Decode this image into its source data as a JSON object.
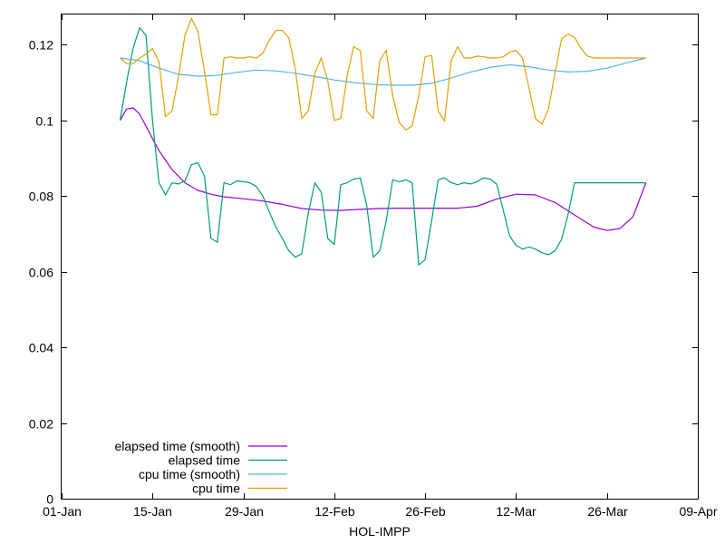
{
  "chart_data": {
    "type": "line",
    "title": "",
    "xlabel": "HOL-IMPP",
    "ylabel": "",
    "x_tick_labels": [
      "01-Jan",
      "15-Jan",
      "29-Jan",
      "12-Feb",
      "26-Feb",
      "12-Mar",
      "26-Mar",
      "09-Apr"
    ],
    "y_tick_labels": [
      "0",
      "0.02",
      "0.04",
      "0.06",
      "0.08",
      "0.1",
      "0.12"
    ],
    "y_ticks": [
      0,
      0.02,
      0.04,
      0.06,
      0.08,
      0.1,
      0.12
    ],
    "x_range_days": [
      0,
      98
    ],
    "ylim": [
      0,
      0.128
    ],
    "grid": false,
    "legend_position": "bottom-left",
    "series": [
      {
        "name": "elapsed time (smooth)",
        "color": "#9400d3",
        "x": [
          9,
          10,
          11,
          12,
          13,
          14,
          15,
          17,
          19,
          21,
          23,
          25,
          28,
          31,
          34,
          37,
          40,
          43,
          46,
          49,
          52,
          55,
          58,
          61,
          64,
          67,
          70,
          73,
          76,
          79,
          82,
          84,
          86,
          88,
          90
        ],
        "y": [
          0.1,
          0.103,
          0.1033,
          0.1017,
          0.0985,
          0.0952,
          0.092,
          0.087,
          0.0835,
          0.0815,
          0.0805,
          0.0798,
          0.0793,
          0.0787,
          0.0778,
          0.0767,
          0.0763,
          0.0762,
          0.0765,
          0.0767,
          0.0768,
          0.0768,
          0.0768,
          0.0768,
          0.0773,
          0.0792,
          0.0805,
          0.0803,
          0.0783,
          0.075,
          0.0718,
          0.0709,
          0.0714,
          0.0745,
          0.0835
        ]
      },
      {
        "name": "elapsed time",
        "color": "#009e73",
        "x": [
          9,
          10,
          11,
          12,
          13,
          14,
          15,
          16,
          17,
          18,
          19,
          20,
          21,
          22,
          23,
          24,
          25,
          26,
          27,
          28,
          29,
          30,
          31,
          32,
          33,
          34,
          35,
          36,
          37,
          38,
          39,
          40,
          41,
          42,
          43,
          44,
          45,
          46,
          47,
          48,
          49,
          50,
          51,
          52,
          53,
          54,
          55,
          56,
          57,
          58,
          59,
          60,
          61,
          62,
          63,
          64,
          65,
          66,
          67,
          68,
          69,
          70,
          71,
          72,
          73,
          74,
          75,
          76,
          77,
          78,
          79,
          80,
          81,
          82,
          83,
          84,
          85,
          86,
          87,
          88,
          89,
          90
        ],
        "y": [
          0.1,
          0.11,
          0.119,
          0.1245,
          0.1225,
          0.1,
          0.0835,
          0.0803,
          0.0835,
          0.0832,
          0.084,
          0.0883,
          0.0888,
          0.0853,
          0.0688,
          0.0678,
          0.0835,
          0.083,
          0.084,
          0.0838,
          0.0835,
          0.0825,
          0.08,
          0.0758,
          0.0718,
          0.0688,
          0.0655,
          0.0638,
          0.0648,
          0.0755,
          0.0835,
          0.081,
          0.0688,
          0.0672,
          0.083,
          0.0835,
          0.0845,
          0.0848,
          0.0775,
          0.0638,
          0.0655,
          0.0735,
          0.0843,
          0.0838,
          0.0843,
          0.0835,
          0.0618,
          0.0632,
          0.0735,
          0.0843,
          0.0848,
          0.0835,
          0.083,
          0.0835,
          0.0832,
          0.0838,
          0.0848,
          0.0845,
          0.0832,
          0.0765,
          0.0695,
          0.067,
          0.066,
          0.0665,
          0.066,
          0.065,
          0.0645,
          0.0655,
          0.0685,
          0.075,
          0.0835,
          0.0835,
          0.0835,
          0.0835,
          0.0835,
          0.0835,
          0.0835,
          0.0835,
          0.0835,
          0.0835,
          0.0835,
          0.0835
        ]
      },
      {
        "name": "cpu time (smooth)",
        "color": "#56b4e9",
        "x": [
          9,
          12,
          15,
          18,
          21,
          24,
          27,
          30,
          33,
          36,
          39,
          42,
          45,
          48,
          51,
          54,
          57,
          60,
          63,
          66,
          69,
          72,
          75,
          78,
          81,
          84,
          87,
          90
        ],
        "y": [
          0.1165,
          0.1158,
          0.1138,
          0.1122,
          0.1117,
          0.1119,
          0.1127,
          0.1133,
          0.1131,
          0.1125,
          0.1116,
          0.1107,
          0.11,
          0.1095,
          0.1093,
          0.1093,
          0.1098,
          0.1112,
          0.1128,
          0.114,
          0.1147,
          0.1142,
          0.1133,
          0.1128,
          0.113,
          0.1138,
          0.1152,
          0.1165
        ]
      },
      {
        "name": "cpu time",
        "color": "#e69f00",
        "x": [
          9,
          10,
          11,
          12,
          13,
          14,
          15,
          16,
          17,
          18,
          19,
          20,
          21,
          22,
          23,
          24,
          25,
          26,
          27,
          28,
          29,
          30,
          31,
          32,
          33,
          34,
          35,
          36,
          37,
          38,
          39,
          40,
          41,
          42,
          43,
          44,
          45,
          46,
          47,
          48,
          49,
          50,
          51,
          52,
          53,
          54,
          55,
          56,
          57,
          58,
          59,
          60,
          61,
          62,
          63,
          64,
          65,
          66,
          67,
          68,
          69,
          70,
          71,
          72,
          73,
          74,
          75,
          76,
          77,
          78,
          79,
          80,
          81,
          82,
          83,
          84,
          85,
          86,
          87,
          88,
          89,
          90
        ],
        "y": [
          0.1165,
          0.115,
          0.115,
          0.1165,
          0.1175,
          0.119,
          0.1155,
          0.101,
          0.1025,
          0.1115,
          0.1225,
          0.127,
          0.1235,
          0.113,
          0.1015,
          0.1015,
          0.1165,
          0.1168,
          0.1165,
          0.1165,
          0.1168,
          0.1165,
          0.1178,
          0.1212,
          0.1238,
          0.1238,
          0.1218,
          0.1135,
          0.1005,
          0.1025,
          0.1125,
          0.1165,
          0.1105,
          0.1,
          0.1005,
          0.112,
          0.1195,
          0.1185,
          0.1025,
          0.1005,
          0.1158,
          0.1185,
          0.1065,
          0.0995,
          0.0975,
          0.0985,
          0.1065,
          0.1168,
          0.1172,
          0.1025,
          0.0998,
          0.1158,
          0.1195,
          0.1165,
          0.1165,
          0.117,
          0.1168,
          0.1165,
          0.1165,
          0.1168,
          0.118,
          0.1185,
          0.1165,
          0.1085,
          0.1005,
          0.099,
          0.103,
          0.1125,
          0.1215,
          0.1228,
          0.122,
          0.119,
          0.117,
          0.1165,
          0.1165,
          0.1165,
          0.1165,
          0.1165,
          0.1165,
          0.1165,
          0.1165,
          0.1165
        ]
      }
    ]
  }
}
